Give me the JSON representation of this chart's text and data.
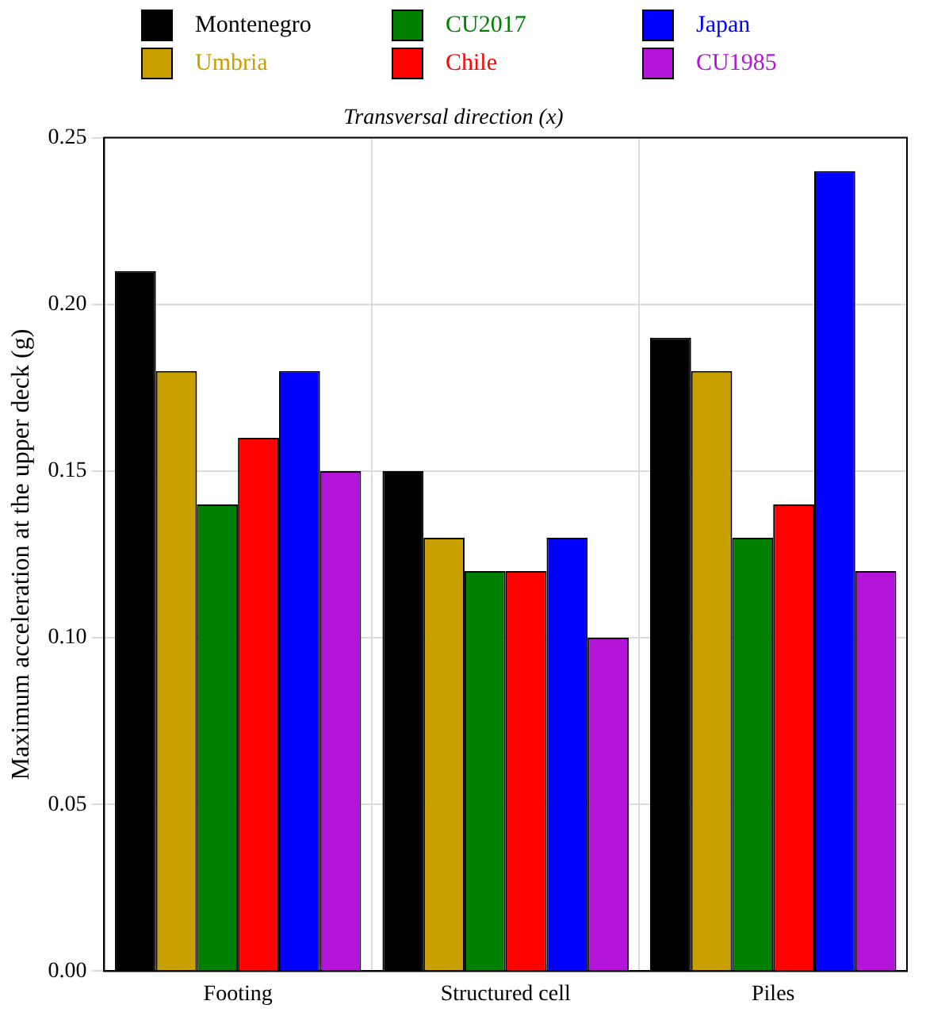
{
  "chart_data": {
    "type": "bar",
    "title": "Transversal direction (x)",
    "ylabel": "Maximum acceleration at the upper deck (g)",
    "categories": [
      "Footing",
      "Structured cell",
      "Piles"
    ],
    "series": [
      {
        "name": "Montenegro",
        "color": "#000000",
        "values": [
          0.21,
          0.15,
          0.19
        ]
      },
      {
        "name": "Umbria",
        "color": "#c8a000",
        "values": [
          0.18,
          0.13,
          0.18
        ]
      },
      {
        "name": "CU2017",
        "color": "#008000",
        "values": [
          0.14,
          0.12,
          0.13
        ]
      },
      {
        "name": "Chile",
        "color": "#ff0000",
        "values": [
          0.16,
          0.12,
          0.14
        ]
      },
      {
        "name": "Japan",
        "color": "#0000ff",
        "values": [
          0.18,
          0.13,
          0.24
        ]
      },
      {
        "name": "CU1985",
        "color": "#b414d8",
        "values": [
          0.15,
          0.1,
          0.12
        ]
      }
    ],
    "ylim": [
      0,
      0.25
    ],
    "yticks": [
      {
        "value": 0,
        "label": "0.00"
      },
      {
        "value": 0.05,
        "label": "0.05"
      },
      {
        "value": 0.1,
        "label": "0.10"
      },
      {
        "value": 0.15,
        "label": "0.15"
      },
      {
        "value": 0.2,
        "label": "0.20"
      },
      {
        "value": 0.25,
        "label": "0.25"
      }
    ],
    "grid": true,
    "legend": "top"
  }
}
